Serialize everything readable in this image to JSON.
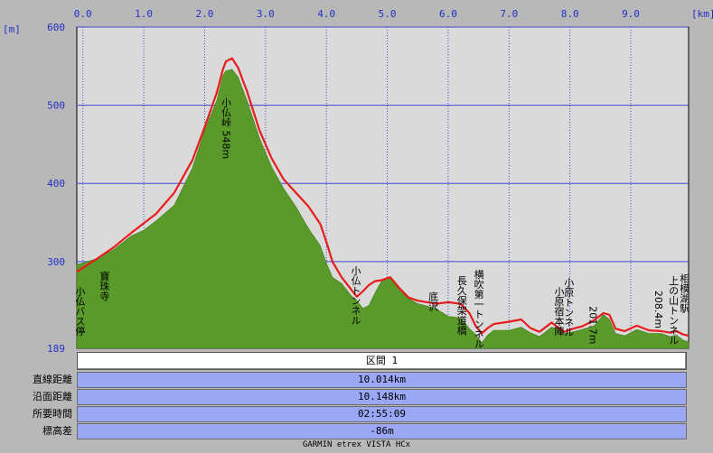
{
  "chart_data": {
    "type": "area",
    "xunit": "[km]",
    "yunit": "[m]",
    "xlim": [
      -0.1,
      9.95
    ],
    "ylim": [
      189,
      600
    ],
    "xticks": [
      "0.0",
      "1.0",
      "2.0",
      "3.0",
      "4.0",
      "5.0",
      "6.0",
      "7.0",
      "8.0",
      "9.0"
    ],
    "yticks": [
      "600",
      "500",
      "400",
      "300",
      "189"
    ],
    "grid": true,
    "series": [
      {
        "color": "#e81c1c",
        "x": [
          -0.1,
          0.2,
          0.5,
          0.8,
          1.0,
          1.2,
          1.5,
          1.8,
          2.0,
          2.2,
          2.3,
          2.35,
          2.45,
          2.55,
          2.7,
          2.9,
          3.1,
          3.3,
          3.5,
          3.7,
          3.9,
          4.0,
          4.1,
          4.25,
          4.4,
          4.5,
          4.6,
          4.7,
          4.8,
          4.9,
          5.05,
          5.2,
          5.35,
          5.5,
          5.8,
          6.0,
          6.2,
          6.35,
          6.45,
          6.55,
          6.65,
          6.75,
          7.0,
          7.2,
          7.35,
          7.5,
          7.7,
          7.8,
          7.9,
          8.05,
          8.2,
          8.4,
          8.55,
          8.65,
          8.75,
          8.9,
          9.1,
          9.3,
          9.5,
          9.65,
          9.75,
          9.85,
          9.95
        ],
        "y": [
          287,
          302,
          318,
          337,
          349,
          361,
          388,
          430,
          472,
          516,
          546,
          556,
          560,
          548,
          517,
          468,
          432,
          405,
          388,
          371,
          348,
          325,
          300,
          280,
          265,
          255,
          262,
          270,
          275,
          276,
          280,
          266,
          254,
          250,
          246,
          248,
          246,
          234,
          218,
          208,
          215,
          220,
          223,
          226,
          215,
          210,
          222,
          216,
          210,
          214,
          217,
          225,
          234,
          232,
          214,
          211,
          218,
          212,
          211,
          209,
          211,
          207,
          205
        ]
      },
      {
        "color": "#5a9a2a",
        "x": [
          -0.1,
          0.2,
          0.5,
          0.8,
          1.0,
          1.2,
          1.5,
          1.8,
          2.0,
          2.2,
          2.3,
          2.35,
          2.45,
          2.55,
          2.7,
          2.9,
          3.1,
          3.3,
          3.5,
          3.7,
          3.9,
          4.0,
          4.1,
          4.25,
          4.4,
          4.5,
          4.6,
          4.7,
          4.8,
          4.9,
          5.05,
          5.2,
          5.35,
          5.5,
          5.8,
          6.0,
          6.2,
          6.35,
          6.45,
          6.55,
          6.65,
          6.75,
          7.0,
          7.2,
          7.35,
          7.5,
          7.7,
          7.8,
          7.9,
          8.05,
          8.2,
          8.4,
          8.55,
          8.65,
          8.75,
          8.9,
          9.1,
          9.3,
          9.5,
          9.65,
          9.75,
          9.85,
          9.95
        ],
        "y": [
          296,
          303,
          315,
          333,
          340,
          352,
          372,
          420,
          468,
          506,
          538,
          544,
          546,
          536,
          505,
          458,
          421,
          393,
          370,
          343,
          320,
          298,
          280,
          272,
          257,
          250,
          240,
          244,
          260,
          274,
          280,
          263,
          253,
          246,
          240,
          230,
          228,
          214,
          207,
          196,
          206,
          212,
          212,
          216,
          209,
          204,
          216,
          214,
          208,
          210,
          213,
          218,
          232,
          226,
          208,
          205,
          213,
          208,
          208,
          204,
          206,
          200,
          197
        ]
      }
    ],
    "annotations": [
      {
        "x": -0.05,
        "y": 268,
        "text": "小仏バス停"
      },
      {
        "x": 0.35,
        "y": 288,
        "text": "寶珠寺"
      },
      {
        "x": 2.35,
        "y": 510,
        "text": "小仏峠 548m"
      },
      {
        "x": 4.48,
        "y": 295,
        "text": "小仏トンネル"
      },
      {
        "x": 5.75,
        "y": 262,
        "text": "底沢"
      },
      {
        "x": 6.22,
        "y": 282,
        "text": "長久保架道橋"
      },
      {
        "x": 6.5,
        "y": 290,
        "text": "横吹第一トンネル"
      },
      {
        "x": 7.82,
        "y": 268,
        "text": "小原宿本陣"
      },
      {
        "x": 7.98,
        "y": 280,
        "text": "小原トンネル"
      },
      {
        "x": 8.38,
        "y": 243,
        "text": "201.7m"
      },
      {
        "x": 9.45,
        "y": 263,
        "text": "208.4m"
      },
      {
        "x": 9.7,
        "y": 282,
        "text": "上の山トンネル"
      },
      {
        "x": 9.88,
        "y": 285,
        "text": "相模湖駅"
      }
    ]
  },
  "section": {
    "label": "区間 1"
  },
  "stats": [
    {
      "label": "直線距離",
      "value": "10.014km"
    },
    {
      "label": "沿面距離",
      "value": "10.148km"
    },
    {
      "label": "所要時間",
      "value": "02:55:09"
    },
    {
      "label": "標高差",
      "value": "-86m"
    }
  ],
  "footer": "GARMIN etrex VISTA HCx"
}
